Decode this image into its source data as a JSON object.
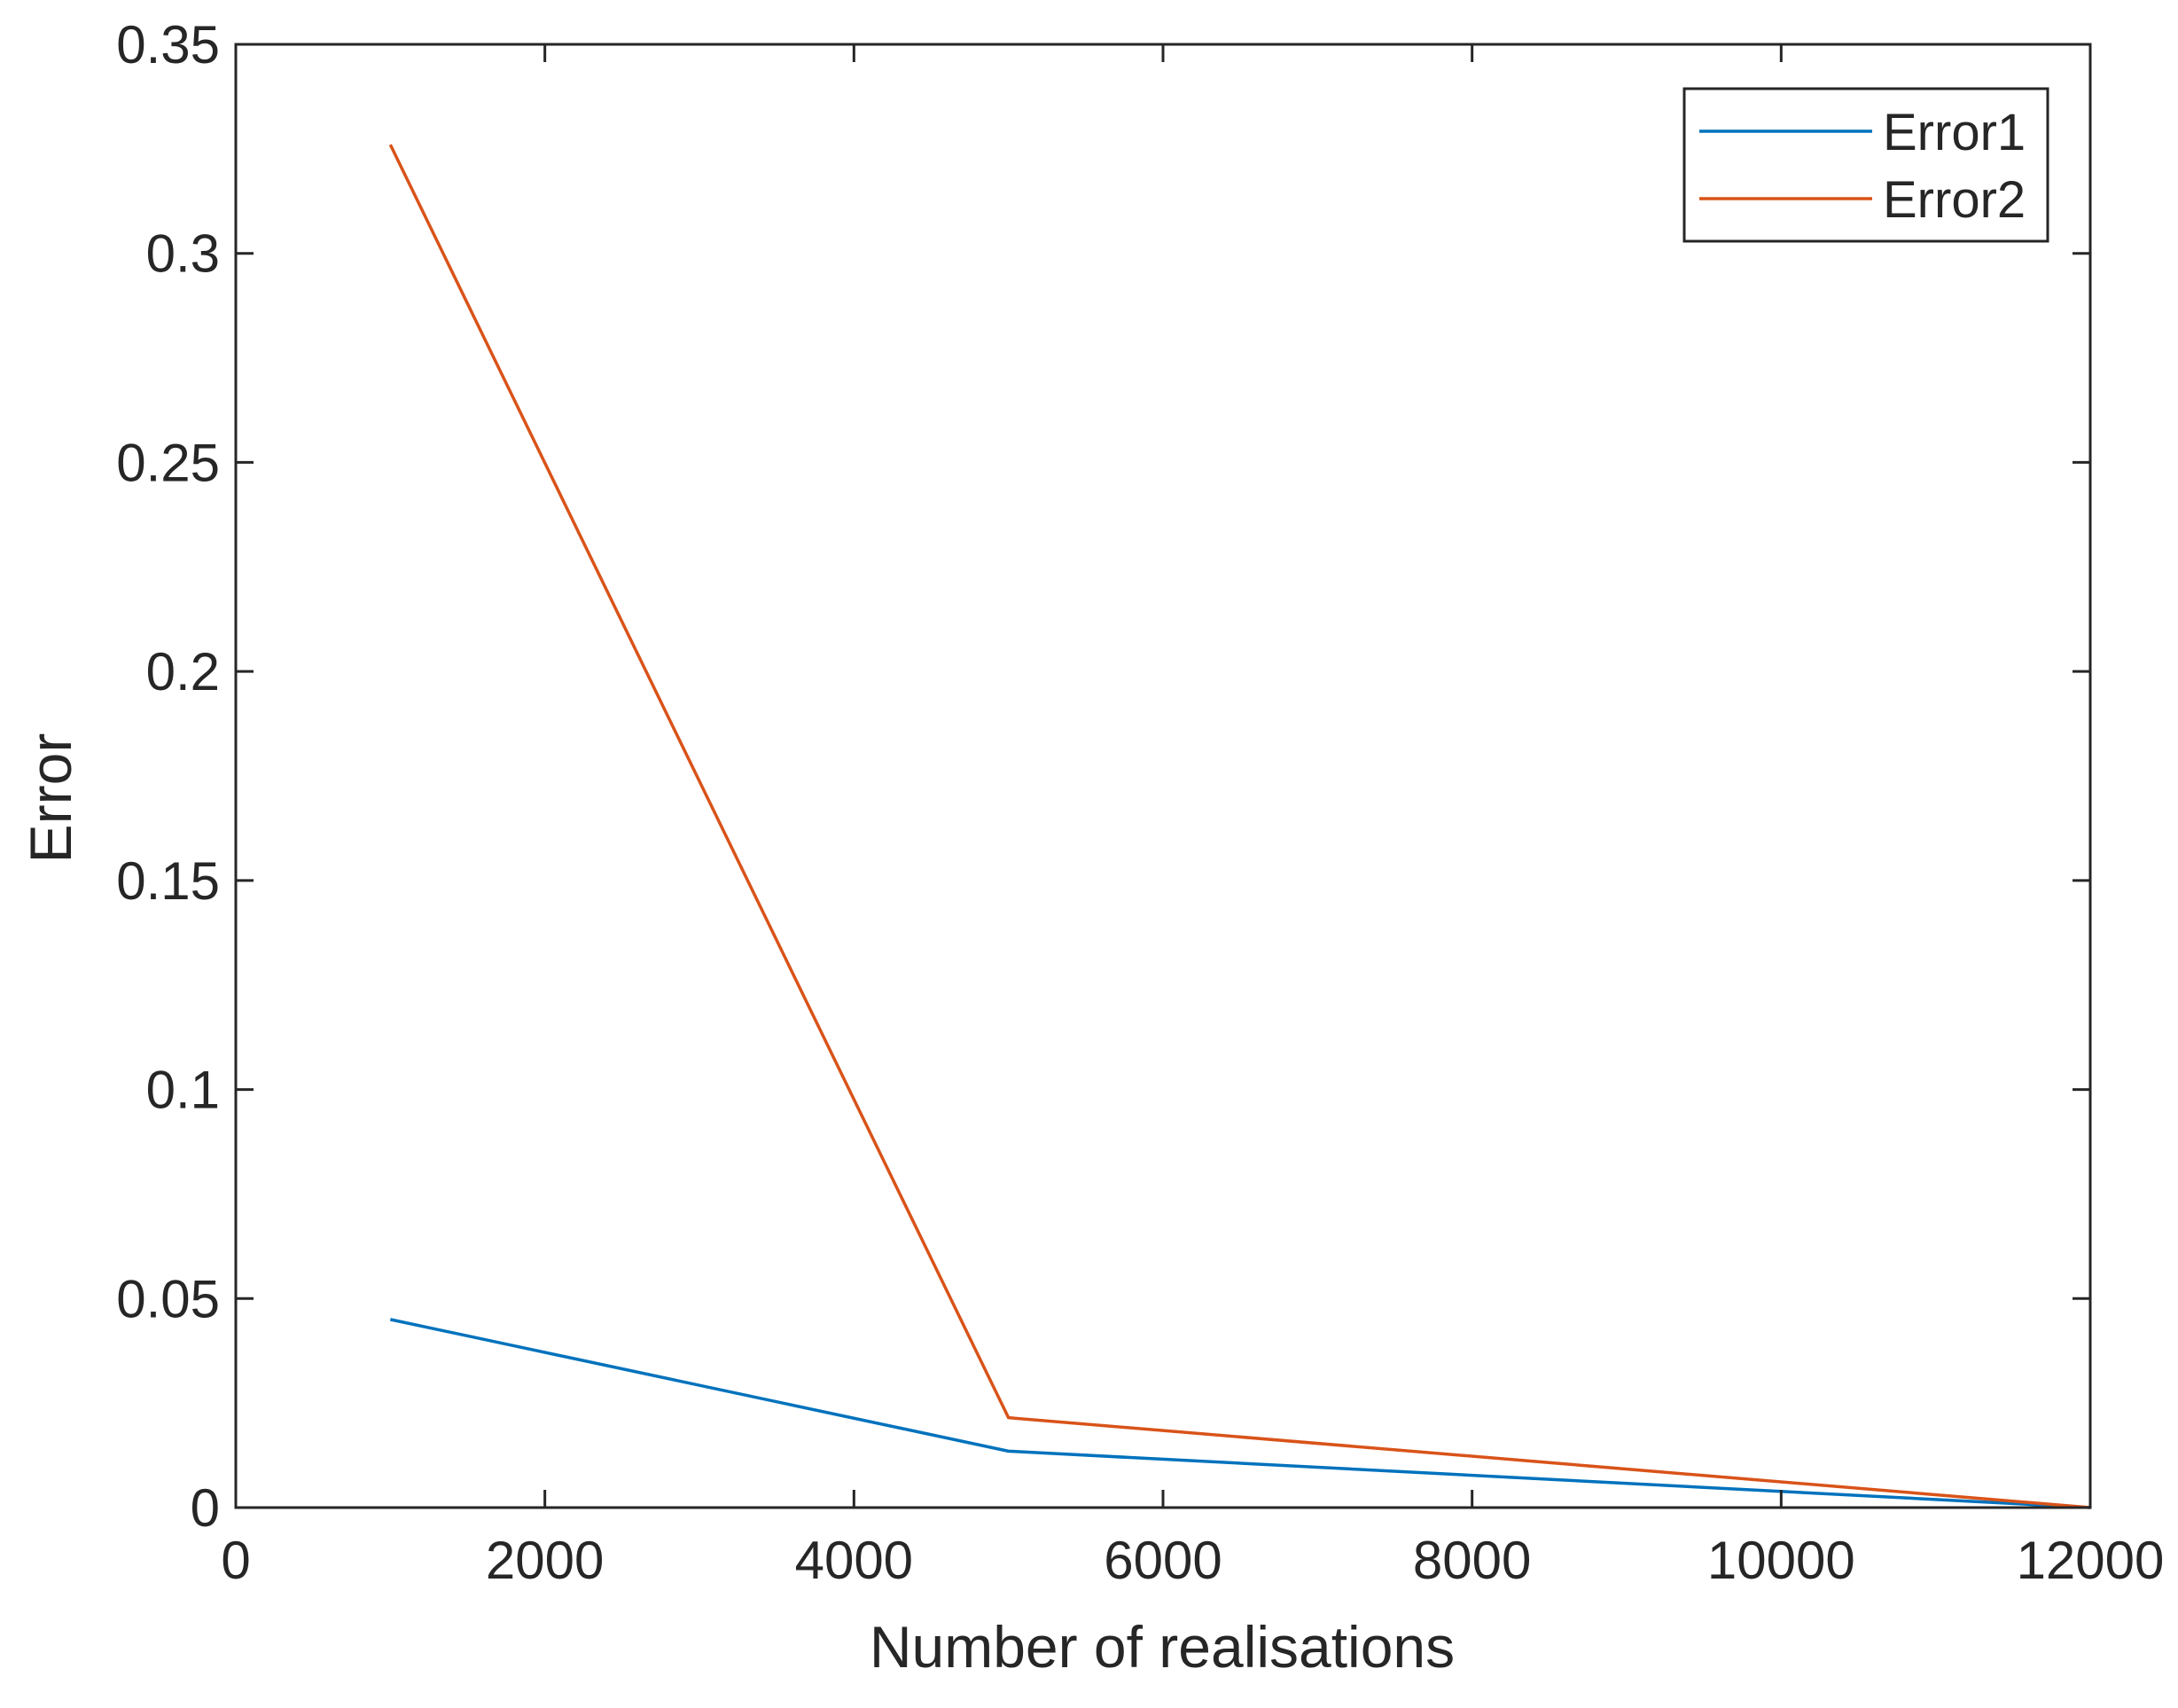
{
  "chart_data": {
    "type": "line",
    "xlabel": "Number of realisations",
    "ylabel": "Error",
    "xlim": [
      0,
      12000
    ],
    "ylim": [
      0,
      0.35
    ],
    "xticks": [
      0,
      2000,
      4000,
      6000,
      8000,
      10000,
      12000
    ],
    "xtick_labels": [
      "0",
      "2000",
      "4000",
      "6000",
      "8000",
      "10000",
      "12000"
    ],
    "yticks": [
      0,
      0.05,
      0.1,
      0.15,
      0.2,
      0.25,
      0.3,
      0.35
    ],
    "ytick_labels": [
      "0",
      "0.05",
      "0.1",
      "0.15",
      "0.2",
      "0.25",
      "0.3",
      "0.35"
    ],
    "grid": false,
    "legend_position": "top-right",
    "x": [
      1000,
      5000,
      12000
    ],
    "series": [
      {
        "name": "Error1",
        "color": "#0072BD",
        "values": [
          0.045,
          0.0135,
          0.0
        ]
      },
      {
        "name": "Error2",
        "color": "#D95319",
        "values": [
          0.326,
          0.0215,
          0.0
        ]
      }
    ]
  }
}
